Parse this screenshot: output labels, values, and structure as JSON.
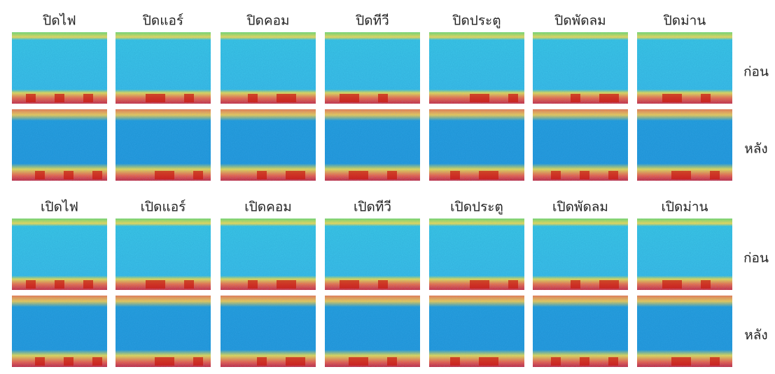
{
  "groups": [
    {
      "columns": [
        "ปิดไฟ",
        "ปิดแอร์",
        "ปิดคอม",
        "ปิดทีวี",
        "ปิดประตู",
        "ปิดพัดลม",
        "ปิดม่าน"
      ],
      "rows": [
        "ก่อน",
        "หลัง"
      ]
    },
    {
      "columns": [
        "เปิดไฟ",
        "เปิดแอร์",
        "เปิดคอม",
        "เปิดทีวี",
        "เปิดประตู",
        "เปิดพัดลม",
        "เปิดม่าน"
      ],
      "rows": [
        "ก่อน",
        "หลัง"
      ]
    }
  ]
}
